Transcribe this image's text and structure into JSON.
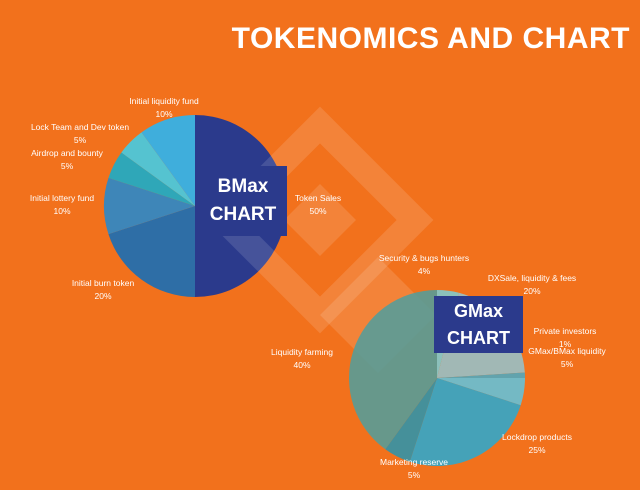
{
  "title": "TOKENOMICS AND CHART",
  "theme": {
    "background": "#F2711C",
    "accent_navy": "#2B3A8C",
    "text_color": "#FFFFFF",
    "watermark_color": "rgba(255,255,255,0.13)"
  },
  "chart_data": [
    {
      "type": "pie",
      "title": "BMax CHART",
      "box_line1": "BMax",
      "box_line2": "CHART",
      "labels": [
        "Token Sales",
        "Initial burn token",
        "Initial lottery fund",
        "Airdrop and bounty",
        "Lock Team and Dev token",
        "Initial liquidity fund"
      ],
      "values": [
        50,
        20,
        10,
        5,
        5,
        10
      ],
      "pct_labels": [
        "50%",
        "20%",
        "10%",
        "5%",
        "5%",
        "10%"
      ],
      "colors": [
        "#2B3A8C",
        "#2E6EA6",
        "#3E86B8",
        "#2FA7B8",
        "#55C3D0",
        "#3FAEDC"
      ],
      "start_angle": "top",
      "direction": "clockwise",
      "legend": "none"
    },
    {
      "type": "pie",
      "title": "GMax CHART",
      "box_line1": "GMax",
      "box_line2": "CHART",
      "labels": [
        "Security & bugs hunters",
        "DXSale, liquidity & fees",
        "Private investors",
        "GMax/BMax liquidity",
        "Lockdrop products",
        "Marketing reserve",
        "Liquidity farming"
      ],
      "values": [
        4,
        20,
        1,
        5,
        25,
        5,
        40
      ],
      "pct_labels": [
        "4%",
        "20%",
        "1%",
        "5%",
        "25%",
        "5%",
        "40%"
      ],
      "colors": [
        "#7ECBD2",
        "#96C2CB",
        "#4FABC2",
        "#63C3DC",
        "#2EA9CE",
        "#2E95AC",
        "#549E9B"
      ],
      "start_angle": "top",
      "direction": "clockwise",
      "legend": "none"
    }
  ]
}
